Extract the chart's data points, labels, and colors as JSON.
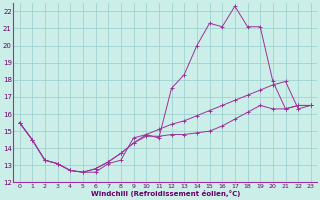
{
  "xlabel": "Windchill (Refroidissement éolien,°C)",
  "bg_color": "#cceee8",
  "grid_color": "#99cccc",
  "line_color": "#993399",
  "xlim": [
    -0.5,
    23.5
  ],
  "ylim": [
    12,
    22.5
  ],
  "yticks": [
    12,
    13,
    14,
    15,
    16,
    17,
    18,
    19,
    20,
    21,
    22
  ],
  "xticks": [
    0,
    1,
    2,
    3,
    4,
    5,
    6,
    7,
    8,
    9,
    10,
    11,
    12,
    13,
    14,
    15,
    16,
    17,
    18,
    19,
    20,
    21,
    22,
    23
  ],
  "series": [
    {
      "x": [
        0,
        1,
        2,
        3,
        4,
        5,
        6,
        7,
        8,
        9,
        10,
        11,
        12,
        13,
        14,
        15,
        16,
        17,
        18,
        19,
        20,
        21,
        22,
        23
      ],
      "y": [
        15.5,
        14.5,
        13.3,
        13.1,
        12.7,
        12.6,
        12.6,
        13.1,
        13.3,
        14.6,
        14.8,
        14.6,
        17.5,
        18.3,
        20.0,
        21.3,
        21.1,
        22.3,
        21.1,
        21.1,
        17.9,
        16.3,
        16.5,
        16.5
      ]
    },
    {
      "x": [
        0,
        1,
        2,
        3,
        4,
        5,
        6,
        7,
        8,
        9,
        10,
        11,
        12,
        13,
        14,
        15,
        16,
        17,
        18,
        19,
        20,
        21,
        22,
        23
      ],
      "y": [
        15.5,
        14.5,
        13.3,
        13.1,
        12.7,
        12.6,
        12.8,
        13.2,
        13.7,
        14.3,
        14.8,
        15.1,
        15.4,
        15.6,
        15.9,
        16.2,
        16.5,
        16.8,
        17.1,
        17.4,
        17.7,
        17.9,
        16.3,
        16.5
      ]
    },
    {
      "x": [
        0,
        1,
        2,
        3,
        4,
        5,
        6,
        7,
        8,
        9,
        10,
        11,
        12,
        13,
        14,
        15,
        16,
        17,
        18,
        19,
        20,
        21,
        22,
        23
      ],
      "y": [
        15.5,
        14.5,
        13.3,
        13.1,
        12.7,
        12.6,
        12.8,
        13.2,
        13.7,
        14.3,
        14.7,
        14.7,
        14.8,
        14.8,
        14.9,
        15.0,
        15.3,
        15.7,
        16.1,
        16.5,
        16.3,
        16.3,
        16.5,
        16.5
      ]
    }
  ]
}
